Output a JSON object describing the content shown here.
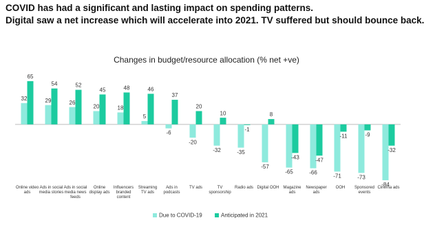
{
  "header": {
    "line1": "COVID has had a significant and lasting impact on spending patterns.",
    "line2": "Digital saw a net increase which will accelerate into 2021. TV suffered but should bounce back."
  },
  "chart_data": {
    "type": "bar",
    "title": "Changes in budget/resource allocation (% net +ve)",
    "categories": [
      "Online video ads",
      "Ads in social media stories",
      "Ads in social media news feeds",
      "Online display ads",
      "Influencers branded content",
      "Streaming TV ads",
      "Ads in podcasts",
      "TV ads",
      "TV sponsorship",
      "Radio ads",
      "Digital OOH",
      "Magazine ads",
      "Newspaper ads",
      "OOH",
      "Sponsored events",
      "Cinema ads"
    ],
    "series": [
      {
        "name": "Due to COVID-19",
        "color": "#8eeadd",
        "values": [
          32,
          29,
          26,
          20,
          18,
          5,
          -6,
          -20,
          -32,
          -35,
          -57,
          -65,
          -66,
          -71,
          -73,
          -84
        ]
      },
      {
        "name": "Anticipated in 2021",
        "color": "#1ccb9f",
        "values": [
          65,
          54,
          52,
          45,
          48,
          46,
          37,
          20,
          10,
          -1,
          8,
          -43,
          -47,
          -11,
          -9,
          -32
        ]
      }
    ]
  }
}
